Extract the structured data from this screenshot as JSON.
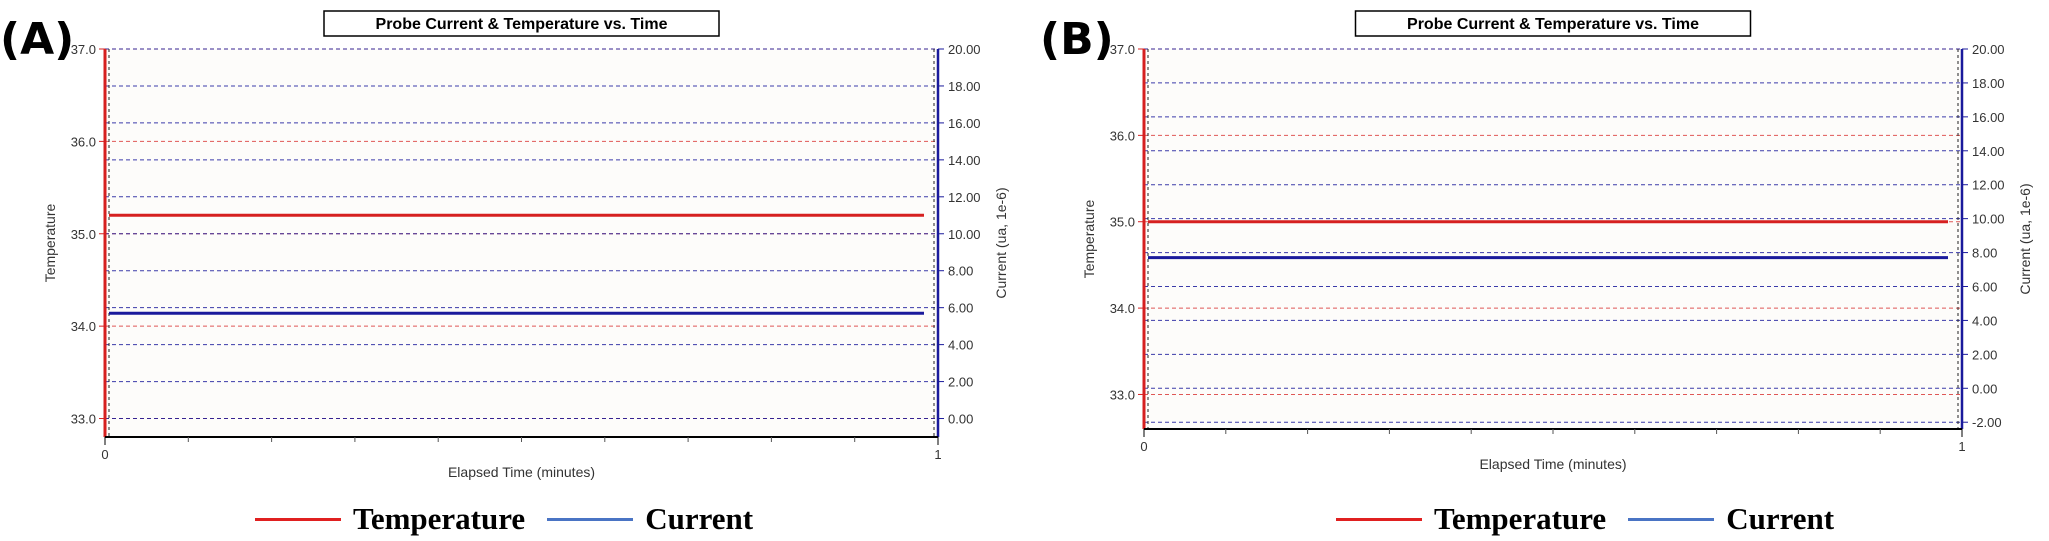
{
  "colors": {
    "temperature": "#d62020",
    "current": "#1a1a9c",
    "legend_temperature": "#e02020",
    "legend_current": "#4a74c4"
  },
  "legend": {
    "temperature_label": "Temperature",
    "current_label": "Current"
  },
  "chart_data": [
    {
      "panel_label": "(A)",
      "type": "line",
      "title": "Probe Current & Temperature vs. Time",
      "xlabel": "Elapsed Time (minutes)",
      "ylabel_left": "Temperature",
      "ylabel_right": "Current (ua, 1e-6)",
      "xlim": [
        0,
        1
      ],
      "xticks": [
        "0",
        "1"
      ],
      "ylim_left": [
        32.8,
        37.0
      ],
      "ylim_right": [
        -1.0,
        20.0
      ],
      "left_ticks": [
        "33.0",
        "34.0",
        "35.0",
        "36.0",
        "37.0"
      ],
      "right_ticks": [
        "0.00",
        "2.00",
        "4.00",
        "6.00",
        "8.00",
        "10.00",
        "12.00",
        "14.00",
        "16.00",
        "18.00",
        "20.00"
      ],
      "series": [
        {
          "name": "Temperature",
          "axis": "left",
          "x": [
            0,
            1
          ],
          "values": [
            35.2,
            35.2
          ]
        },
        {
          "name": "Current",
          "axis": "right",
          "x": [
            0,
            1
          ],
          "values": [
            5.7,
            5.7
          ]
        }
      ]
    },
    {
      "panel_label": "(B)",
      "type": "line",
      "title": "Probe Current & Temperature vs. Time",
      "xlabel": "Elapsed Time (minutes)",
      "ylabel_left": "Temperature",
      "ylabel_right": "Current (ua, 1e-6)",
      "xlim": [
        0,
        1
      ],
      "xticks": [
        "0",
        "1"
      ],
      "ylim_left": [
        32.6,
        37.0
      ],
      "ylim_right": [
        -2.4,
        20.0
      ],
      "left_ticks": [
        "33.0",
        "34.0",
        "35.0",
        "36.0",
        "37.0"
      ],
      "right_ticks": [
        "-2.00",
        "0.00",
        "2.00",
        "4.00",
        "6.00",
        "8.00",
        "10.00",
        "12.00",
        "14.00",
        "16.00",
        "18.00",
        "20.00"
      ],
      "series": [
        {
          "name": "Temperature",
          "axis": "left",
          "x": [
            0,
            1
          ],
          "values": [
            35.0,
            35.0
          ]
        },
        {
          "name": "Current",
          "axis": "right",
          "x": [
            0,
            1
          ],
          "values": [
            7.7,
            7.7
          ]
        }
      ]
    }
  ]
}
